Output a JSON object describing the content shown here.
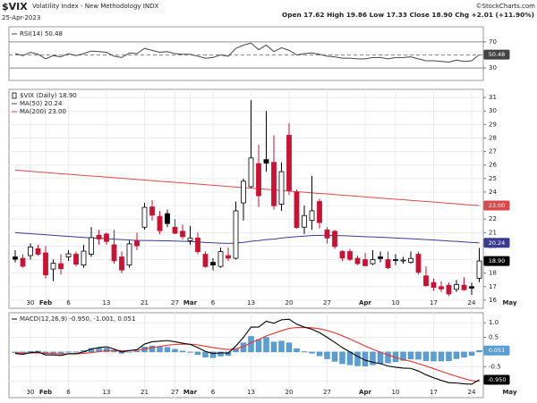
{
  "header": {
    "symbol": "$VIX",
    "name": "Volatility Index - New Methodology INDX",
    "date": "25-Apr-2023",
    "quote": "Open 17.62  High 19.86  Low 17.33  Close 18.90  Chg +2.01 (+11.90%)",
    "credit": "©StockCharts.com"
  },
  "chart_data": [
    {
      "type": "line",
      "ylim": [
        11,
        93
      ],
      "yticks": [
        30,
        50,
        70
      ],
      "grid": true,
      "series": [
        {
          "name": "RSI(14) 50.48",
          "color": "#444444",
          "end_box": true,
          "values": [
            52,
            49,
            54,
            51,
            44,
            49,
            47,
            52,
            49,
            52,
            56,
            55,
            54,
            48,
            46,
            53,
            52,
            60,
            57,
            54,
            55,
            52,
            51,
            51,
            48,
            45,
            46,
            50,
            48,
            60,
            65,
            68,
            58,
            65,
            55,
            61,
            57,
            50,
            52,
            53,
            51,
            48,
            47,
            45,
            45,
            44,
            44,
            46,
            46,
            44,
            46,
            46,
            47,
            44,
            41,
            41,
            40,
            39,
            42,
            40,
            41,
            50.48
          ]
        }
      ]
    },
    {
      "type": "candlestick",
      "ylim": [
        15.4,
        31.6
      ],
      "yticks": [
        16,
        17,
        18,
        19,
        20,
        21,
        22,
        23,
        24,
        25,
        26,
        27,
        28,
        29,
        30,
        31
      ],
      "grid": true,
      "categories": [
        null,
        null,
        "30",
        null,
        "Feb",
        null,
        null,
        "6",
        null,
        null,
        null,
        null,
        "13",
        null,
        null,
        null,
        null,
        "21",
        null,
        null,
        null,
        "27",
        null,
        "Mar",
        null,
        null,
        "6",
        null,
        null,
        null,
        null,
        "13",
        null,
        null,
        null,
        null,
        "20",
        null,
        null,
        null,
        null,
        "27",
        null,
        null,
        null,
        null,
        "Apr",
        null,
        null,
        null,
        "10",
        null,
        null,
        null,
        null,
        "17",
        null,
        null,
        null,
        null,
        "24",
        null,
        null,
        null,
        null,
        "May"
      ],
      "colors": {
        "rising": "#ffffff",
        "falling": "#cc1133",
        "other": "#000000"
      },
      "candles": {
        "name": "$VIX (Daily) 18.90",
        "end_box": true,
        "open": [
          19.2,
          19.1,
          19.3,
          19.8,
          19.5,
          18.3,
          18.7,
          19.2,
          19.4,
          18.6,
          19.4,
          20.8,
          20.9,
          20.1,
          19.2,
          18.6,
          20.4,
          21.4,
          22.9,
          22.2,
          22.4,
          21.4,
          21.1,
          20.4,
          20.6,
          19.4,
          18.8,
          18.5,
          19.3,
          19.1,
          23.2,
          24.4,
          26.1,
          26.4,
          26.2,
          23.1,
          28.2,
          24.0,
          21.4,
          21.9,
          23.3,
          21.2,
          21.1,
          19.6,
          19.6,
          19.1,
          19.0,
          18.7,
          19.2,
          19.0,
          19.0,
          18.9,
          18.8,
          19.4,
          17.8,
          17.3,
          17.0,
          17.1,
          16.8,
          17.1,
          17.0,
          17.62,
          null,
          null,
          null,
          null
        ],
        "high": [
          19.7,
          19.4,
          20.2,
          20.1,
          20.0,
          19.0,
          19.4,
          19.7,
          19.6,
          20.1,
          21.4,
          21.2,
          21.0,
          21.2,
          19.6,
          20.4,
          21.0,
          23.2,
          23.4,
          22.6,
          22.7,
          22.0,
          21.6,
          21.5,
          21.0,
          19.6,
          19.1,
          19.9,
          19.9,
          23.3,
          25.0,
          30.8,
          27.5,
          30.0,
          28.2,
          26.2,
          29.1,
          24.2,
          23.0,
          25.2,
          23.5,
          21.4,
          21.2,
          19.7,
          19.8,
          19.3,
          19.5,
          19.7,
          19.6,
          19.6,
          19.4,
          19.2,
          19.6,
          19.6,
          18.5,
          17.6,
          17.4,
          17.3,
          17.5,
          17.7,
          17.3,
          19.86,
          null,
          null,
          null,
          null
        ],
        "low": [
          18.8,
          18.4,
          19.0,
          19.3,
          17.6,
          17.4,
          17.9,
          18.9,
          18.5,
          18.4,
          19.2,
          20.1,
          20.1,
          18.7,
          18.0,
          18.4,
          19.7,
          21.2,
          21.9,
          20.9,
          21.4,
          20.9,
          20.5,
          20.1,
          19.4,
          18.4,
          18.2,
          18.4,
          18.9,
          19.0,
          21.9,
          24.3,
          22.9,
          25.5,
          22.7,
          22.6,
          23.8,
          21.3,
          20.9,
          21.2,
          21.3,
          20.2,
          19.8,
          18.9,
          18.9,
          18.6,
          18.5,
          18.6,
          18.8,
          18.3,
          18.6,
          18.7,
          18.7,
          17.9,
          17.0,
          16.7,
          16.6,
          16.3,
          16.6,
          16.7,
          16.4,
          17.33,
          null,
          null,
          null,
          null
        ],
        "close": [
          19.03,
          18.51,
          19.94,
          19.4,
          17.87,
          18.73,
          18.33,
          19.43,
          18.66,
          19.63,
          20.63,
          20.53,
          20.34,
          18.91,
          18.23,
          20.17,
          20.02,
          22.87,
          22.29,
          21.14,
          21.67,
          20.95,
          20.7,
          20.58,
          19.59,
          18.49,
          18.6,
          19.59,
          19.11,
          22.61,
          24.8,
          26.52,
          23.73,
          26.14,
          22.99,
          25.51,
          24.12,
          21.38,
          22.26,
          22.61,
          21.74,
          20.6,
          19.97,
          19.12,
          19.02,
          18.7,
          18.55,
          19.0,
          19.08,
          18.4,
          18.97,
          18.97,
          19.09,
          18.06,
          17.07,
          16.95,
          16.83,
          16.46,
          17.16,
          16.77,
          16.89,
          18.9,
          null,
          null,
          null,
          null
        ],
        "value_labels": [
          null,
          null,
          null,
          null,
          null,
          null,
          null,
          null,
          null,
          null,
          null,
          null,
          null,
          null,
          null,
          null,
          null,
          null,
          null,
          null,
          null,
          null,
          null,
          null,
          null,
          null,
          null,
          null,
          null,
          null,
          null,
          null,
          null,
          null,
          null,
          null,
          null,
          null,
          null,
          null,
          null,
          null,
          null,
          null,
          null,
          null,
          null,
          null,
          null,
          null,
          null,
          null,
          null,
          null,
          null,
          null,
          null,
          null,
          null,
          null,
          null,
          "18.90",
          null,
          null,
          null,
          null
        ]
      },
      "series": [
        {
          "name": "MA(50) 20.24",
          "color": "#3b3b8f",
          "end_box": true,
          "values": [
            21.0,
            20.95,
            20.92,
            20.88,
            20.85,
            20.8,
            20.76,
            20.72,
            20.68,
            20.64,
            20.61,
            20.58,
            20.55,
            20.52,
            20.48,
            20.45,
            20.42,
            20.42,
            20.41,
            20.4,
            20.39,
            20.38,
            20.36,
            20.34,
            20.31,
            20.27,
            20.24,
            20.22,
            20.2,
            20.23,
            20.28,
            20.36,
            20.41,
            20.48,
            20.52,
            20.6,
            20.66,
            20.7,
            20.74,
            20.78,
            20.8,
            20.8,
            20.79,
            20.77,
            20.75,
            20.72,
            20.7,
            20.68,
            20.66,
            20.63,
            20.6,
            20.57,
            20.55,
            20.52,
            20.48,
            20.45,
            20.42,
            20.38,
            20.35,
            20.31,
            20.27,
            20.24,
            null,
            null,
            null,
            null
          ]
        },
        {
          "name": "MA(200) 23.00",
          "color": "#d84a4a",
          "end_box": true,
          "values": [
            25.62,
            25.58,
            25.53,
            25.49,
            25.45,
            25.4,
            25.36,
            25.32,
            25.28,
            25.23,
            25.19,
            25.15,
            25.1,
            25.06,
            25.02,
            24.98,
            24.93,
            24.89,
            24.85,
            24.8,
            24.76,
            24.72,
            24.67,
            24.63,
            24.59,
            24.55,
            24.5,
            24.46,
            24.42,
            24.37,
            24.33,
            24.29,
            24.24,
            24.2,
            24.16,
            24.12,
            24.07,
            24.03,
            23.99,
            23.94,
            23.9,
            23.86,
            23.81,
            23.77,
            23.73,
            23.69,
            23.64,
            23.6,
            23.56,
            23.51,
            23.47,
            23.43,
            23.38,
            23.34,
            23.3,
            23.26,
            23.21,
            23.17,
            23.13,
            23.08,
            23.04,
            23.0,
            null,
            null,
            null,
            null
          ],
          "value_labels": [
            null,
            null,
            null,
            null,
            null,
            null,
            null,
            null,
            null,
            null,
            null,
            null,
            null,
            null,
            null,
            null,
            null,
            null,
            null,
            null,
            null,
            null,
            null,
            null,
            null,
            null,
            null,
            null,
            null,
            null,
            null,
            null,
            null,
            null,
            null,
            null,
            null,
            null,
            null,
            null,
            null,
            null,
            null,
            null,
            null,
            null,
            null,
            null,
            null,
            null,
            null,
            null,
            null,
            null,
            null,
            null,
            null,
            null,
            null,
            null,
            null,
            "23.00",
            null,
            null,
            null,
            null
          ]
        }
      ]
    },
    {
      "type": "macd",
      "title": "MACD(12,26,9) -0.950, -1.001, 0.051",
      "ylim": [
        -1.56,
        1.34
      ],
      "yticks": [
        {
          "value": -1,
          "label": "-1.0"
        },
        -0.5,
        {
          "value": 0,
          "label": "0.0"
        },
        0.5,
        {
          "value": 1,
          "label": "1.0"
        }
      ],
      "grid": true,
      "categories": [
        null,
        null,
        "30",
        null,
        "Feb",
        null,
        null,
        "6",
        null,
        null,
        null,
        null,
        "13",
        null,
        null,
        null,
        null,
        "21",
        null,
        null,
        null,
        "27",
        null,
        "Mar",
        null,
        null,
        "6",
        null,
        null,
        null,
        null,
        "13",
        null,
        null,
        null,
        null,
        "20",
        null,
        null,
        null,
        null,
        "27",
        null,
        null,
        null,
        null,
        "Apr",
        null,
        null,
        null,
        "10",
        null,
        null,
        null,
        null,
        "17",
        null,
        null,
        null,
        null,
        "24",
        null,
        null,
        null,
        null,
        "May"
      ],
      "series": [
        {
          "style": "bar",
          "color": "#5a9fd4",
          "end_box": true,
          "values": [
            -0.02,
            -0.04,
            0.016,
            0.029,
            -0.057,
            -0.046,
            -0.053,
            0.006,
            0.005,
            0.052,
            0.122,
            0.138,
            0.134,
            0.043,
            -0.046,
            0.003,
            0.026,
            0.173,
            0.202,
            0.178,
            0.158,
            0.094,
            0.035,
            -0.004,
            -0.091,
            -0.177,
            -0.198,
            -0.142,
            -0.122,
            0.094,
            0.315,
            0.532,
            0.426,
            0.501,
            0.345,
            0.372,
            0.314,
            0.115,
            0.012,
            -0.046,
            -0.133,
            -0.234,
            -0.323,
            -0.402,
            -0.442,
            -0.474,
            -0.483,
            -0.442,
            -0.394,
            -0.379,
            -0.335,
            -0.292,
            -0.242,
            -0.25,
            -0.3,
            -0.31,
            -0.31,
            -0.3,
            -0.23,
            -0.18,
            -0.12,
            0.051,
            null,
            null,
            null,
            null
          ]
        },
        {
          "style": "line",
          "color": "#e8312f",
          "values": [
            -0.03,
            -0.04,
            -0.036,
            -0.029,
            -0.043,
            -0.054,
            -0.067,
            -0.066,
            -0.065,
            -0.052,
            -0.022,
            0.012,
            0.046,
            0.057,
            0.046,
            0.047,
            0.054,
            0.097,
            0.148,
            0.192,
            0.232,
            0.256,
            0.265,
            0.264,
            0.241,
            0.197,
            0.148,
            0.112,
            0.082,
            0.106,
            0.185,
            0.318,
            0.424,
            0.549,
            0.635,
            0.728,
            0.806,
            0.835,
            0.838,
            0.826,
            0.793,
            0.734,
            0.653,
            0.552,
            0.442,
            0.324,
            0.203,
            0.092,
            -0.006,
            -0.101,
            -0.185,
            -0.258,
            -0.318,
            -0.4,
            -0.48,
            -0.57,
            -0.66,
            -0.75,
            -0.83,
            -0.91,
            -0.98,
            -1.001,
            null,
            null,
            null,
            null
          ]
        },
        {
          "style": "line",
          "color": "#000000",
          "end_box": true,
          "values": [
            -0.05,
            -0.08,
            -0.02,
            0.0,
            -0.1,
            -0.1,
            -0.12,
            -0.06,
            -0.06,
            0.0,
            0.1,
            0.15,
            0.18,
            0.1,
            0.0,
            0.05,
            0.08,
            0.27,
            0.35,
            0.37,
            0.39,
            0.35,
            0.3,
            0.26,
            0.15,
            0.02,
            -0.05,
            -0.03,
            -0.04,
            0.2,
            0.5,
            0.85,
            0.85,
            1.05,
            0.98,
            1.1,
            1.12,
            0.95,
            0.85,
            0.78,
            0.66,
            0.5,
            0.33,
            0.15,
            0.0,
            -0.15,
            -0.28,
            -0.35,
            -0.4,
            -0.48,
            -0.52,
            -0.55,
            -0.56,
            -0.65,
            -0.78,
            -0.88,
            -0.97,
            -1.05,
            -1.06,
            -1.09,
            -1.1,
            -0.95,
            null,
            null,
            null,
            null
          ],
          "value_labels": [
            null,
            null,
            null,
            null,
            null,
            null,
            null,
            null,
            null,
            null,
            null,
            null,
            null,
            null,
            null,
            null,
            null,
            null,
            null,
            null,
            null,
            null,
            null,
            null,
            null,
            null,
            null,
            null,
            null,
            null,
            null,
            null,
            null,
            null,
            null,
            null,
            null,
            null,
            null,
            null,
            null,
            null,
            null,
            null,
            null,
            null,
            null,
            null,
            null,
            null,
            null,
            null,
            null,
            null,
            null,
            null,
            null,
            null,
            null,
            null,
            null,
            "-0.950",
            null,
            null,
            null,
            null
          ]
        }
      ]
    }
  ]
}
